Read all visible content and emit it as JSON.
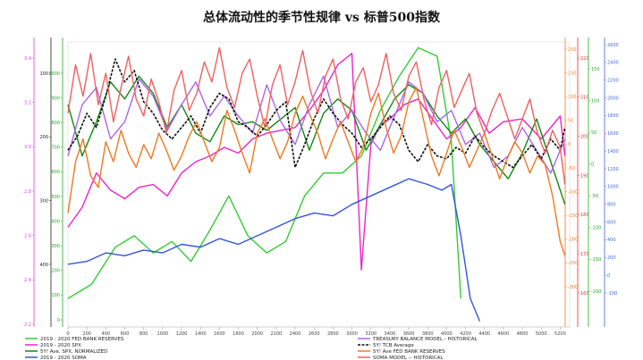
{
  "title": "总体流动性的季节性规律 vs 标普500指数",
  "chart_data": {
    "type": "line",
    "title": "总体流动性的季节性规律 vs 标普500指数",
    "xlabel": "",
    "ylabel": "",
    "x_ticks": [
      "0",
      "200",
      "400",
      "600",
      "800",
      "1000",
      "1200",
      "1400",
      "1600",
      "1800",
      "2000",
      "2200",
      "2400",
      "2600",
      "2800",
      "3000",
      "3200",
      "3400",
      "3600",
      "3800",
      "4000",
      "4200",
      "4400",
      "4600",
      "4800",
      "5000",
      "5200"
    ],
    "xlim": [
      0,
      5300
    ],
    "axes": {
      "pink_left": {
        "color": "#e040e0",
        "ticks": [
          "2.2",
          "2.4",
          "2.6",
          "2.8",
          "3.0",
          "3.2",
          "3.4"
        ]
      },
      "black_left": {
        "color": "#222222",
        "ticks": [
          "400",
          "300",
          "200",
          "100"
        ]
      },
      "green_left": {
        "color": "#22aa22",
        "ticks": [
          "0",
          "100",
          "200",
          "300",
          "400",
          "500",
          "600",
          "700",
          "800",
          "900",
          "1000"
        ]
      },
      "red_right": {
        "color": "#e03030",
        "ticks": [
          "160",
          "170",
          "180",
          "190",
          "200",
          "210",
          "220"
        ]
      },
      "orange_right": {
        "color": "#f07820",
        "ticks": [
          "-300",
          "-250",
          "-200",
          "-150",
          "-100",
          "-50",
          "0",
          "50",
          "100",
          "150",
          "200"
        ]
      },
      "green_right": {
        "color": "#22aa22",
        "ticks": [
          "-200",
          "-150",
          "-100",
          "-50",
          "0",
          "50",
          "100",
          "150"
        ]
      },
      "blue_right": {
        "color": "#4466dd",
        "ticks": [
          "-100",
          "0",
          "200",
          "400",
          "600",
          "800",
          "1000",
          "1200",
          "1400",
          "1600",
          "1800",
          "2000",
          "2200",
          "2400",
          "2600"
        ]
      }
    },
    "series": [
      {
        "name": "2019 - 2020 FED BANK RESERVES",
        "color": "#33cc33",
        "x": [
          0,
          250,
          500,
          700,
          900,
          1100,
          1300,
          1500,
          1700,
          1900,
          2100,
          2300,
          2500,
          2700,
          2900,
          3100,
          3300,
          3500,
          3700,
          3900,
          4050,
          4150
        ],
        "y": [
          1.0,
          1.5,
          2.8,
          3.2,
          2.6,
          3.0,
          2.3,
          3.4,
          4.6,
          3.2,
          2.6,
          3.0,
          4.6,
          5.4,
          5.4,
          6.0,
          7.6,
          8.8,
          9.8,
          9.5,
          6.5,
          1.0
        ]
      },
      {
        "name": "2019 - 2020 SPX",
        "color": "#ee22cc",
        "x": [
          0,
          150,
          300,
          450,
          600,
          750,
          900,
          1050,
          1200,
          1350,
          1500,
          1650,
          1800,
          1950,
          2100,
          2250,
          2400,
          2550,
          2700,
          2850,
          3000,
          3100,
          3200,
          3300,
          3400,
          3550,
          3700,
          3850,
          4000,
          4150,
          4300,
          4450,
          4600,
          4800,
          5000,
          5200,
          5250
        ],
        "y": [
          3.5,
          4.2,
          5.4,
          4.8,
          4.5,
          4.9,
          5.0,
          4.6,
          5.4,
          5.8,
          6.0,
          6.3,
          6.1,
          6.6,
          6.8,
          6.9,
          7.0,
          7.6,
          8.3,
          9.2,
          9.6,
          2.0,
          6.4,
          7.1,
          7.3,
          7.8,
          8.0,
          7.3,
          6.6,
          7.0,
          7.7,
          6.8,
          7.2,
          7.3,
          6.6,
          7.4,
          6.0
        ]
      },
      {
        "name": "5Y! Ave. SPX, NORMALIZED",
        "color": "#118811",
        "x": [
          0,
          150,
          300,
          450,
          600,
          750,
          900,
          1050,
          1200,
          1350,
          1500,
          1650,
          1800,
          1950,
          2100,
          2250,
          2400,
          2550,
          2700,
          2850,
          3000,
          3150,
          3300,
          3450,
          3600,
          3750,
          3900,
          4050,
          4200,
          4350,
          4500,
          4650,
          4800,
          4950,
          5100,
          5250
        ],
        "y": [
          7.8,
          6.0,
          7.2,
          8.6,
          8.0,
          8.8,
          8.2,
          7.0,
          7.8,
          6.8,
          6.5,
          7.4,
          7.1,
          7.2,
          6.9,
          7.3,
          7.7,
          6.2,
          7.5,
          8.0,
          7.6,
          6.2,
          7.1,
          8.0,
          8.5,
          8.2,
          7.4,
          6.8,
          7.3,
          6.4,
          5.8,
          5.2,
          6.1,
          7.3,
          5.8,
          4.3
        ]
      },
      {
        "name": "2019 - 2020 SOMA",
        "color": "#3355dd",
        "x": [
          0,
          200,
          400,
          600,
          800,
          1000,
          1200,
          1400,
          1600,
          1800,
          2000,
          2200,
          2400,
          2600,
          2800,
          3000,
          3200,
          3400,
          3600,
          3800,
          3950,
          4050,
          4150,
          4250,
          4350
        ],
        "y": [
          2.2,
          2.3,
          2.6,
          2.5,
          2.7,
          2.6,
          2.9,
          2.8,
          3.1,
          2.9,
          3.2,
          3.5,
          3.8,
          4.0,
          3.9,
          4.3,
          4.6,
          4.9,
          5.2,
          5.0,
          4.8,
          5.0,
          3.2,
          1.0,
          0.2
        ]
      },
      {
        "name": "TREASURY BALANCE MODEL - HISTORICAL",
        "color": "#aa66ee",
        "x": [
          0,
          150,
          300,
          450,
          600,
          750,
          900,
          1050,
          1200,
          1350,
          1500,
          1650,
          1800,
          1950,
          2100,
          2250,
          2400,
          2550,
          2700,
          2850,
          3000,
          3150,
          3300,
          3450,
          3600,
          3750,
          3900,
          4050,
          4200,
          4350,
          4500,
          4650,
          4800,
          4950,
          5100,
          5250
        ],
        "y": [
          6.0,
          7.8,
          8.4,
          6.6,
          7.2,
          8.7,
          8.1,
          6.9,
          7.8,
          8.6,
          7.4,
          8.1,
          7.4,
          6.8,
          8.5,
          7.2,
          6.4,
          7.8,
          8.8,
          7.0,
          7.6,
          6.8,
          6.2,
          7.4,
          8.6,
          8.2,
          7.2,
          7.6,
          6.4,
          6.8,
          5.6,
          6.0,
          7.0,
          6.2,
          5.4,
          6.6
        ]
      },
      {
        "name": "5Y! TCB Average",
        "color": "#111111",
        "dashed": true,
        "x": [
          0,
          100,
          200,
          300,
          400,
          500,
          600,
          700,
          800,
          900,
          1000,
          1100,
          1200,
          1300,
          1400,
          1500,
          1600,
          1700,
          1800,
          1900,
          2000,
          2100,
          2200,
          2300,
          2400,
          2500,
          2600,
          2700,
          2800,
          2900,
          3000,
          3100,
          3200,
          3300,
          3400,
          3500,
          3600,
          3700,
          3800,
          3900,
          4000,
          4100,
          4200,
          4300,
          4400,
          4500,
          4600,
          4700,
          4800,
          4900,
          5000,
          5100,
          5200,
          5250
        ],
        "y": [
          6.2,
          6.7,
          7.5,
          7.0,
          8.1,
          9.4,
          8.6,
          9.0,
          7.9,
          7.5,
          6.9,
          6.6,
          7.0,
          7.4,
          6.8,
          7.7,
          8.2,
          8.0,
          7.2,
          7.0,
          6.7,
          7.1,
          7.6,
          7.9,
          5.6,
          6.4,
          7.3,
          8.0,
          7.5,
          7.1,
          6.8,
          6.3,
          6.6,
          7.0,
          7.4,
          7.1,
          6.2,
          5.8,
          6.4,
          6.0,
          5.9,
          6.3,
          6.1,
          6.7,
          6.3,
          6.0,
          5.8,
          5.6,
          6.0,
          6.4,
          5.9,
          6.6,
          6.2,
          7.0
        ]
      },
      {
        "name": "5Y! Ave FED BANK RESERVES",
        "color": "#f07820",
        "x": [
          0,
          80,
          160,
          240,
          320,
          400,
          480,
          560,
          640,
          720,
          800,
          880,
          960,
          1040,
          1120,
          1200,
          1280,
          1360,
          1440,
          1520,
          1600,
          1680,
          1760,
          1840,
          1920,
          2000,
          2080,
          2160,
          2240,
          2320,
          2400,
          2480,
          2560,
          2640,
          2720,
          2800,
          2880,
          2960,
          3040,
          3120,
          3200,
          3280,
          3360,
          3440,
          3520,
          3600,
          3680,
          3760,
          3840,
          3920,
          4000,
          4080,
          4160,
          4240,
          4320,
          4400,
          4480,
          4560,
          4640,
          4720,
          4800,
          4880,
          4960,
          5040,
          5120,
          5200,
          5250
        ],
        "y": [
          4.0,
          5.8,
          6.6,
          5.3,
          4.9,
          6.5,
          5.8,
          6.9,
          6.1,
          5.6,
          6.4,
          5.9,
          6.8,
          6.2,
          5.5,
          6.0,
          6.7,
          7.2,
          6.5,
          5.8,
          6.3,
          7.6,
          6.9,
          6.1,
          5.4,
          6.8,
          7.3,
          6.6,
          5.9,
          6.5,
          7.5,
          8.1,
          7.4,
          6.8,
          5.9,
          6.6,
          7.2,
          6.5,
          5.8,
          6.3,
          7.5,
          8.2,
          7.0,
          6.1,
          6.7,
          7.9,
          8.4,
          7.2,
          6.0,
          5.3,
          6.1,
          6.9,
          6.3,
          5.6,
          6.2,
          6.8,
          6.0,
          5.2,
          5.9,
          6.5,
          6.1,
          5.4,
          6.0,
          5.7,
          4.6,
          3.0,
          2.5
        ]
      },
      {
        "name": "SOMA MODEL -- HISTORICAL",
        "color": "#f06060",
        "x": [
          0,
          80,
          160,
          240,
          320,
          400,
          480,
          560,
          640,
          720,
          800,
          880,
          960,
          1040,
          1120,
          1200,
          1280,
          1360,
          1440,
          1520,
          1600,
          1680,
          1760,
          1840,
          1920,
          2000,
          2080,
          2160,
          2240,
          2320,
          2400,
          2480,
          2560,
          2640,
          2720,
          2800,
          2880,
          2960,
          3040,
          3120,
          3200,
          3280,
          3360,
          3440,
          3520,
          3600,
          3680,
          3760,
          3840,
          3920,
          4000,
          4080,
          4160,
          4240,
          4320,
          4400,
          4480,
          4560,
          4640,
          4720,
          4800,
          4880,
          4960,
          5040,
          5120,
          5200,
          5250
        ],
        "y": [
          7.5,
          9.2,
          8.1,
          9.6,
          7.8,
          8.9,
          7.2,
          8.4,
          9.5,
          8.0,
          7.4,
          8.7,
          7.9,
          6.8,
          8.3,
          9.0,
          7.6,
          8.2,
          9.3,
          8.6,
          9.8,
          8.4,
          7.7,
          8.9,
          9.4,
          8.1,
          7.0,
          8.5,
          9.2,
          7.8,
          8.6,
          9.7,
          8.3,
          7.5,
          8.8,
          9.4,
          8.0,
          7.3,
          8.6,
          9.1,
          7.9,
          8.5,
          9.6,
          8.2,
          7.6,
          8.8,
          9.3,
          8.0,
          7.1,
          8.4,
          9.0,
          7.7,
          8.3,
          8.9,
          7.5,
          6.8,
          7.6,
          8.2,
          7.4,
          6.6,
          7.3,
          8.0,
          6.8,
          6.1,
          6.9,
          6.3,
          5.0
        ]
      }
    ]
  }
}
